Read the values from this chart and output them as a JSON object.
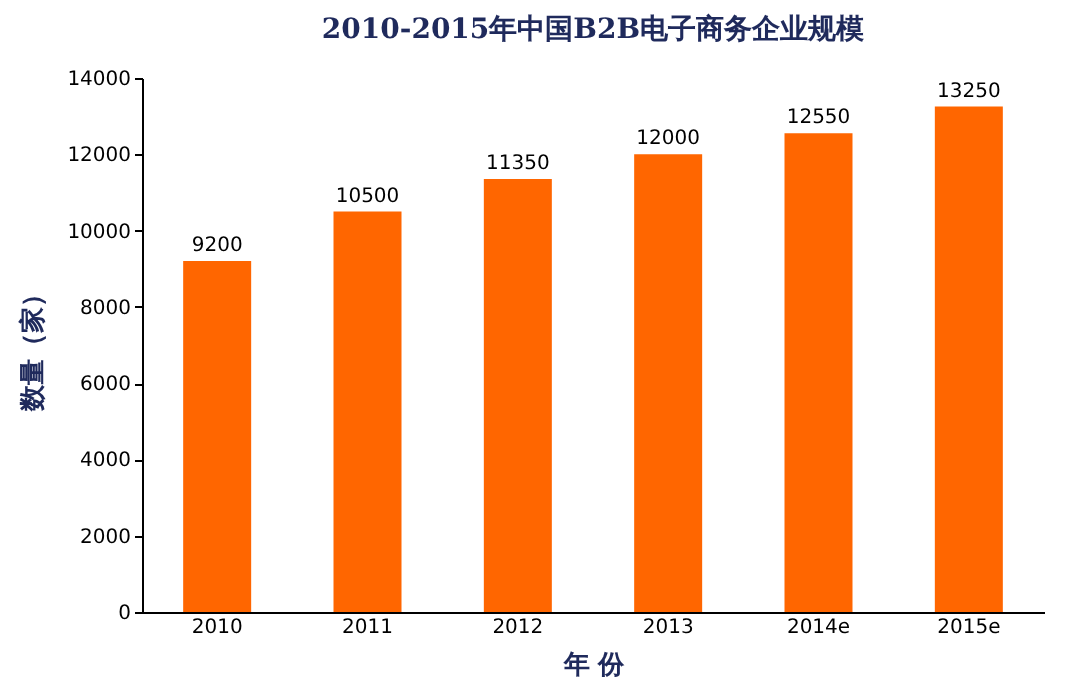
{
  "chart_data": {
    "type": "bar",
    "title": "2010-2015年中国B2B电子商务企业规模",
    "xlabel": "年 份",
    "ylabel": "数量（家）",
    "categories": [
      "2010",
      "2011",
      "2012",
      "2013",
      "2014e",
      "2015e"
    ],
    "values": [
      9200,
      10500,
      11350,
      12000,
      12550,
      13250
    ],
    "color": "#ff6600",
    "ylim": [
      0,
      14000
    ],
    "yticks": [
      0,
      2000,
      4000,
      6000,
      8000,
      10000,
      12000,
      14000
    ],
    "data_labels": true,
    "grid": false
  }
}
